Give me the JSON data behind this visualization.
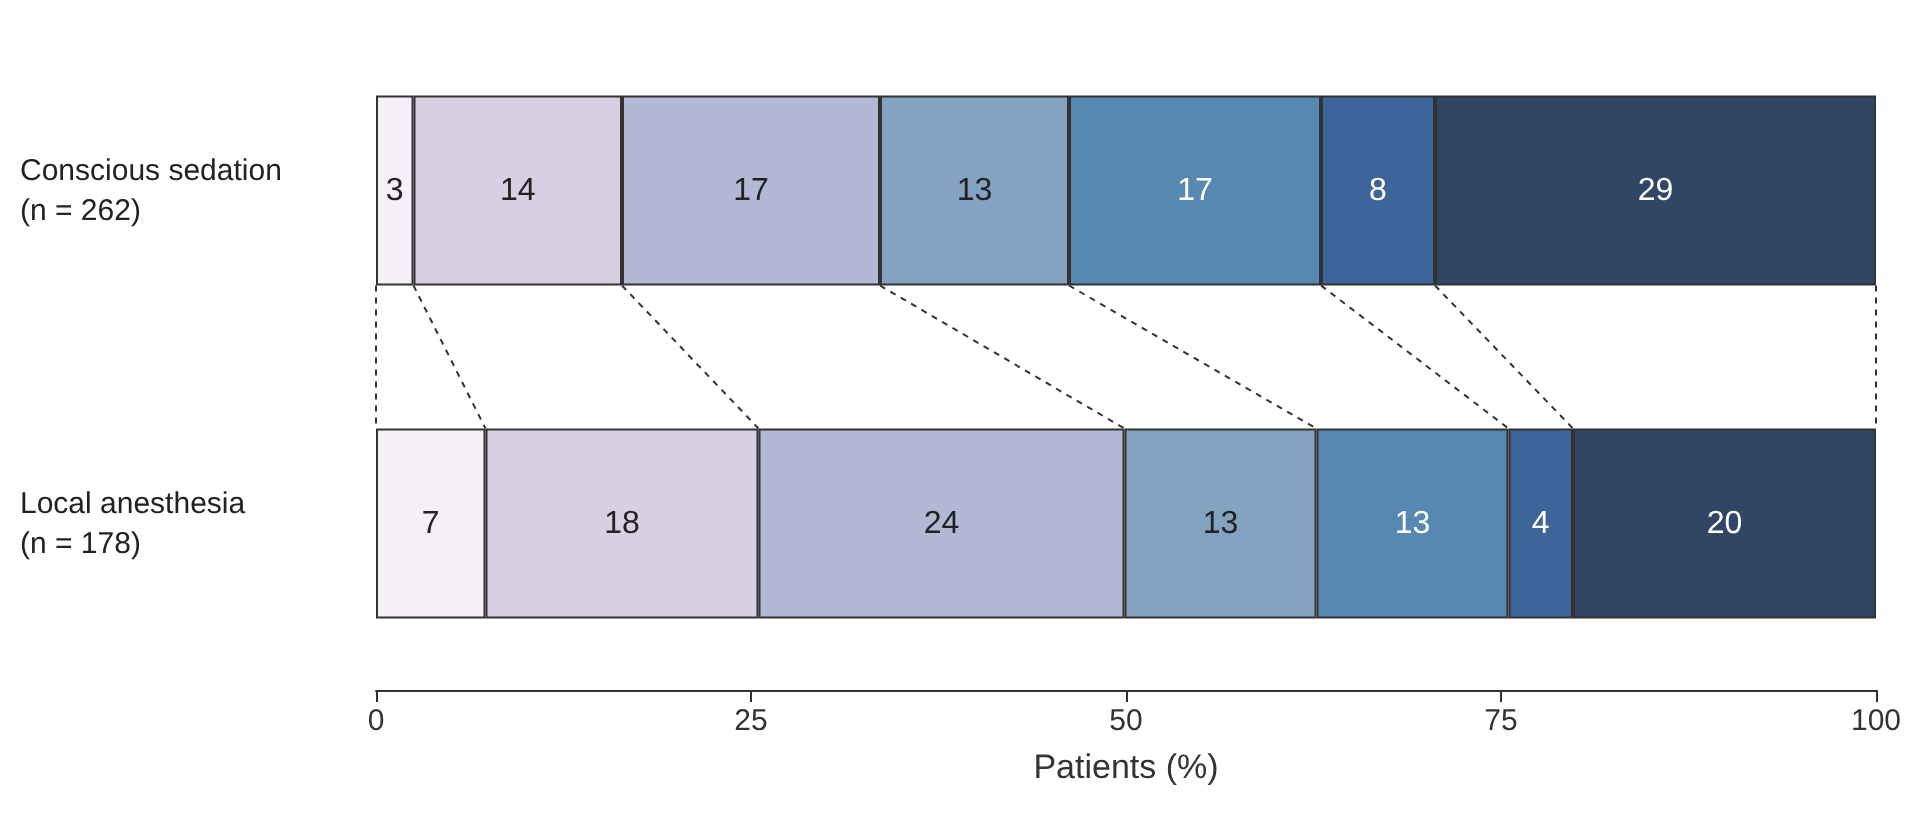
{
  "chart_data": {
    "type": "bar",
    "orientation": "horizontal",
    "stacked": true,
    "xlabel": "Patients (%)",
    "categories": [
      "Conscious sedation\n(n = 262)",
      "Local anesthesia\n(n = 178)"
    ],
    "xlim": [
      0,
      100
    ],
    "xticks": [
      0,
      25,
      50,
      75,
      100
    ],
    "grid": false,
    "series": [
      {
        "color": "#f5eff7",
        "values": [
          2.5,
          7.3
        ],
        "value_labels": [
          "3",
          "7"
        ]
      },
      {
        "color": "#d8cfe3",
        "values": [
          13.9,
          18.2
        ],
        "value_labels": [
          "14",
          "18"
        ]
      },
      {
        "color": "#b1b9d5",
        "values": [
          17.2,
          24.4
        ],
        "value_labels": [
          "17",
          "24"
        ]
      },
      {
        "color": "#84a3c1",
        "values": [
          12.6,
          12.8
        ],
        "value_labels": [
          "13",
          "13"
        ]
      },
      {
        "color": "#5688b1",
        "values": [
          16.8,
          12.8
        ],
        "value_labels": [
          "17",
          "13"
        ]
      },
      {
        "color": "#3d6599",
        "values": [
          7.6,
          4.3
        ],
        "value_labels": [
          "8",
          "4"
        ]
      },
      {
        "color": "#304664",
        "values": [
          29.4,
          20.2
        ],
        "value_labels": [
          "29",
          "20"
        ]
      }
    ]
  }
}
